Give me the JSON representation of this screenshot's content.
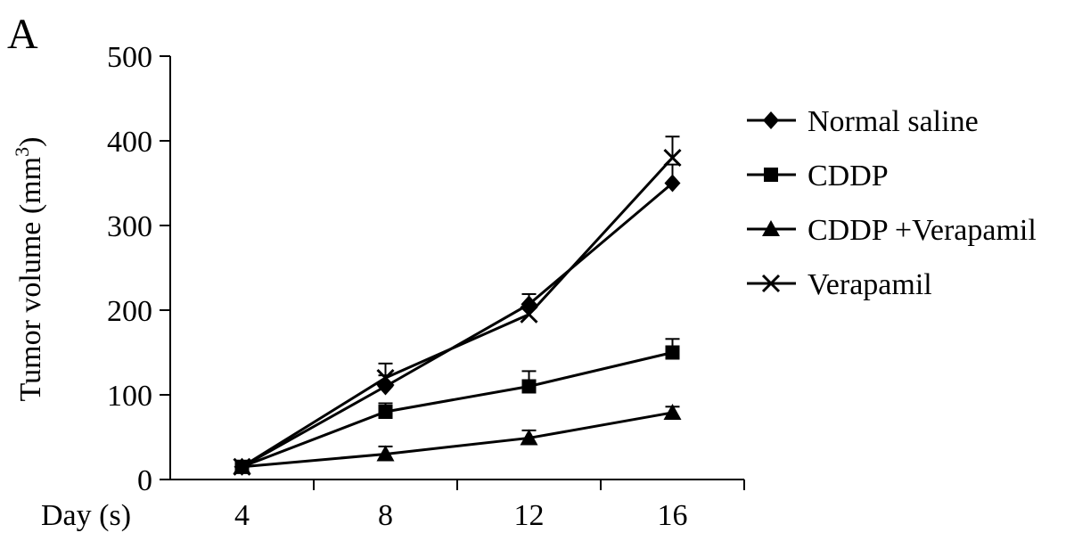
{
  "panel_label": "A",
  "chart_data": {
    "type": "line",
    "x": [
      4,
      8,
      12,
      16
    ],
    "xlabel": "Day (s)",
    "ylabel": "Tumor volume (mm",
    "ylabel_sup": "3",
    "ylabel_close": ")",
    "xlim": [
      2,
      18
    ],
    "ylim": [
      0,
      500
    ],
    "yticks": [
      0,
      100,
      200,
      300,
      400,
      500
    ],
    "xticks": [
      4,
      8,
      12,
      16
    ],
    "grid": false,
    "legend_position": "right",
    "series": [
      {
        "name": "Normal saline",
        "marker": "diamond",
        "values": [
          15,
          110,
          207,
          350
        ],
        "errors": [
          0,
          13,
          12,
          22
        ]
      },
      {
        "name": "CDDP",
        "marker": "square",
        "values": [
          15,
          80,
          110,
          150
        ],
        "errors": [
          0,
          10,
          18,
          16
        ]
      },
      {
        "name": "CDDP +Verapamil",
        "marker": "triangle",
        "values": [
          15,
          30,
          49,
          79
        ],
        "errors": [
          0,
          9,
          9,
          7
        ]
      },
      {
        "name": "Verapamil",
        "marker": "x",
        "values": [
          15,
          120,
          195,
          380
        ],
        "errors": [
          0,
          17,
          12,
          25
        ]
      }
    ]
  }
}
